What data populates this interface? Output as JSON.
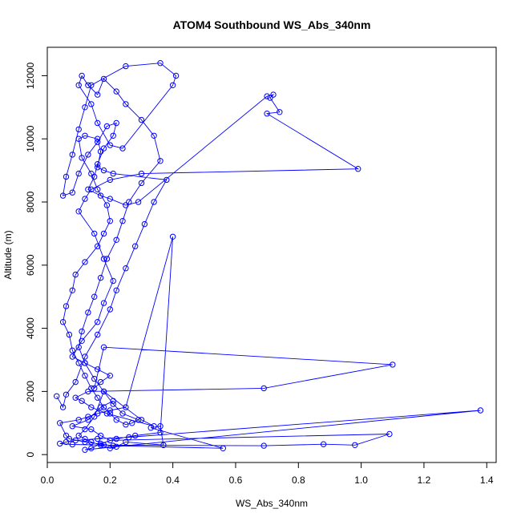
{
  "chart_data": {
    "type": "line",
    "title": "ATOM4 Southbound WS_Abs_340nm",
    "xlabel": "WS_Abs_340nm",
    "ylabel": "Altitude (m)",
    "xlim": [
      0,
      1.43
    ],
    "ylim": [
      -250,
      12900
    ],
    "x_ticks": [
      0.0,
      0.2,
      0.4,
      0.6,
      0.8,
      1.0,
      1.2,
      1.4
    ],
    "x_tick_labels": [
      "0.0",
      "0.2",
      "0.4",
      "0.6",
      "0.8",
      "1.0",
      "1.2",
      "1.4"
    ],
    "y_ticks": [
      0,
      2000,
      4000,
      6000,
      8000,
      10000,
      12000
    ],
    "y_tick_labels": [
      "0",
      "2000",
      "4000",
      "6000",
      "8000",
      "10000",
      "12000"
    ],
    "grid": false,
    "legend": "none",
    "series": [
      {
        "color": "#0000ff",
        "marker": "open-circle",
        "x": [
          0.03,
          0.05,
          0.06,
          0.09,
          0.12,
          0.16,
          0.2,
          0.22,
          0.25,
          0.28,
          0.31,
          0.34,
          0.38,
          0.21,
          0.18,
          0.16,
          0.17,
          0.16,
          0.12,
          0.1,
          0.11,
          0.14,
          0.16,
          0.19,
          0.2,
          0.18,
          0.16,
          0.12,
          0.09,
          0.08,
          0.06,
          0.05,
          0.07,
          0.08,
          0.1,
          0.12,
          0.14,
          0.16,
          0.18,
          0.2,
          0.22,
          0.25,
          0.27,
          0.29,
          0.24,
          0.21,
          0.18,
          0.15,
          0.12,
          0.1,
          0.11,
          0.13,
          0.15,
          0.17,
          0.19,
          0.22,
          0.24,
          0.26,
          0.3,
          0.36,
          0.34,
          0.3,
          0.25,
          0.22,
          0.18,
          0.16,
          0.13,
          0.11,
          0.1,
          0.14,
          0.16,
          0.2,
          0.24,
          0.4,
          0.41,
          0.36,
          0.25,
          0.14,
          0.12,
          0.1,
          0.08,
          0.06,
          0.05,
          0.08,
          0.1,
          0.13,
          0.16,
          0.19,
          0.22,
          0.21,
          0.18,
          0.16,
          0.15,
          0.13,
          0.17,
          0.2,
          0.25,
          0.29,
          0.7,
          0.72,
          0.71,
          0.74,
          0.7,
          0.99,
          0.3,
          0.2,
          0.14,
          0.12,
          0.1,
          0.15,
          0.18,
          0.21,
          0.18,
          0.16,
          0.11,
          0.08,
          0.12,
          0.16,
          0.2,
          0.17,
          0.15,
          0.18,
          1.1,
          0.69,
          0.13,
          0.09,
          0.11,
          0.14,
          0.19,
          0.34,
          0.3,
          0.18,
          0.15,
          0.12,
          0.1,
          0.12,
          0.14,
          0.17,
          0.2,
          0.22,
          0.25,
          0.37,
          0.36,
          0.33,
          0.56,
          0.21,
          0.12,
          0.07,
          0.06,
          0.04,
          0.1,
          0.13,
          0.16,
          0.2,
          0.25,
          0.4,
          0.36,
          0.28,
          0.22,
          0.17,
          0.14,
          0.12,
          1.38,
          0.26,
          0.16,
          0.09,
          0.06,
          0.04,
          0.08,
          0.18,
          0.69,
          0.88,
          0.98,
          1.09,
          0.2,
          0.17,
          0.14,
          0.08,
          0.13,
          0.17,
          0.21
        ],
        "y": [
          1850,
          1500,
          1900,
          2300,
          3100,
          3800,
          4600,
          5200,
          5900,
          6600,
          7300,
          8000,
          8700,
          8900,
          9000,
          9100,
          9600,
          10000,
          10100,
          10000,
          9400,
          8900,
          8400,
          7900,
          7400,
          7000,
          6600,
          6100,
          5700,
          5200,
          4700,
          4200,
          3800,
          3300,
          2900,
          2500,
          2100,
          1800,
          1500,
          1300,
          1100,
          950,
          1000,
          1100,
          1300,
          1600,
          2000,
          2400,
          2900,
          3400,
          3900,
          4500,
          5000,
          5600,
          6200,
          6800,
          7400,
          8000,
          8600,
          9300,
          10100,
          10600,
          11100,
          11500,
          11900,
          11400,
          11700,
          12000,
          11700,
          11100,
          10500,
          9800,
          9700,
          11700,
          12000,
          12400,
          12300,
          11700,
          11000,
          10300,
          9500,
          8800,
          8200,
          8300,
          8900,
          9500,
          9900,
          10400,
          10500,
          10100,
          9700,
          9200,
          8800,
          8400,
          8200,
          8100,
          7900,
          8000,
          11350,
          11400,
          11300,
          10850,
          10800,
          9050,
          8900,
          8700,
          8400,
          8100,
          7700,
          7000,
          6200,
          5500,
          4800,
          4200,
          3600,
          3100,
          2900,
          2700,
          2500,
          2300,
          2100,
          3400,
          2850,
          2100,
          2000,
          1800,
          1700,
          1500,
          1300,
          900,
          1100,
          2000,
          1200,
          800,
          600,
          500,
          400,
          300,
          200,
          250,
          400,
          300,
          900,
          850,
          200,
          280,
          400,
          500,
          600,
          1000,
          1100,
          1200,
          1300,
          1400,
          1500,
          6900,
          700,
          600,
          500,
          350,
          200,
          150,
          1400,
          550,
          500,
          450,
          400,
          350,
          320,
          300,
          280,
          330,
          300,
          650,
          450,
          600,
          800,
          900,
          1100,
          1500,
          1700
        ]
      }
    ]
  }
}
